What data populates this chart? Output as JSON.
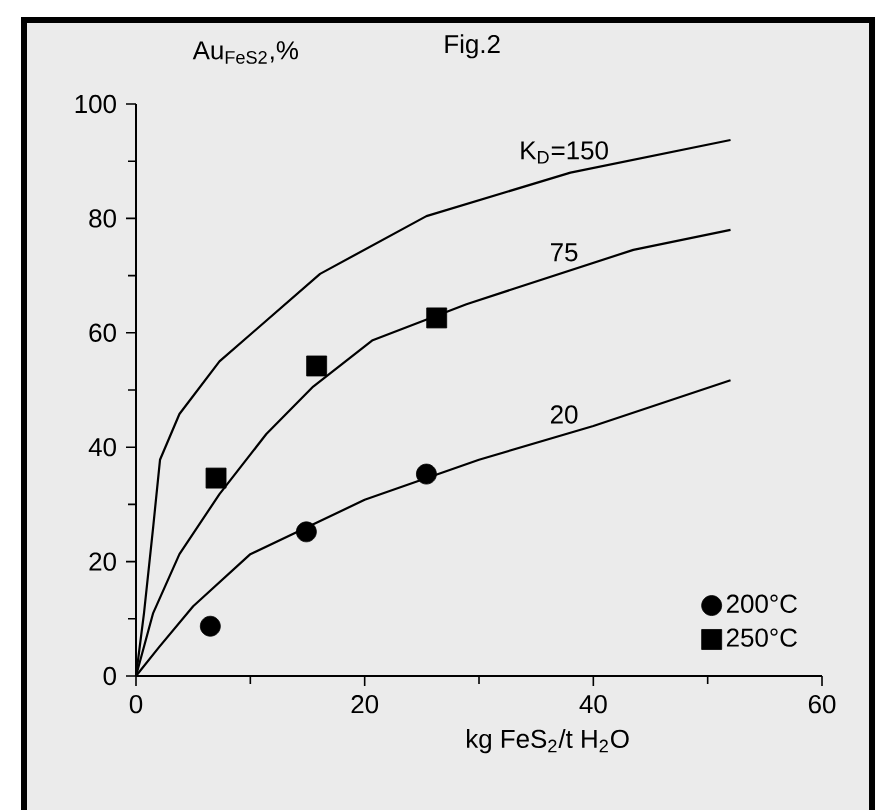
{
  "chart_data": {
    "type": "line",
    "title": "Fig.2",
    "xlabel": "kg FeS$_{2}$/t H$_{2}$O",
    "ylabel": "Au$_{FeS2}$,%",
    "xlim": [
      0,
      60
    ],
    "ylim": [
      0,
      100
    ],
    "xticks": [
      0,
      20,
      40,
      60
    ],
    "yticks": [
      0,
      20,
      40,
      60,
      80,
      100
    ],
    "legend": "bottom right",
    "line_style": "solid",
    "series": [
      {
        "name": "K$_{D}$=150",
        "color": "#000000",
        "marker": "none",
        "x": [
          0,
          0.7,
          1.5,
          2.1,
          3.8,
          7.3,
          16.1,
          25.4,
          38,
          52
        ],
        "values": [
          0,
          11,
          26,
          37.8,
          45.8,
          55,
          70.3,
          80.4,
          88,
          93.7
        ]
      },
      {
        "name": "75",
        "color": "#000000",
        "marker": "none",
        "x": [
          0,
          1.5,
          3.8,
          7.3,
          11.4,
          15.5,
          20.7,
          28.9,
          43.5,
          52
        ],
        "values": [
          0,
          11,
          21.3,
          31.8,
          42.3,
          50.6,
          58.7,
          65,
          74.5,
          78
        ]
      },
      {
        "name": "20",
        "color": "#000000",
        "marker": "none",
        "x": [
          0,
          2,
          5,
          10,
          20,
          30,
          40,
          52
        ],
        "values": [
          0,
          5,
          12.2,
          21.3,
          30.8,
          37.8,
          43.7,
          51.7
        ]
      },
      {
        "type": "scatter",
        "name": "200°C",
        "color": "#000000",
        "marker": "circle",
        "x": [
          6.5,
          14.9,
          25.4
        ],
        "values": [
          8.7,
          25.2,
          35.3
        ]
      },
      {
        "type": "scatter",
        "name": "250°C",
        "color": "#000000",
        "marker": "square",
        "x": [
          7.0,
          15.8,
          26.3
        ],
        "values": [
          34.6,
          54.2,
          62.6
        ]
      }
    ]
  }
}
